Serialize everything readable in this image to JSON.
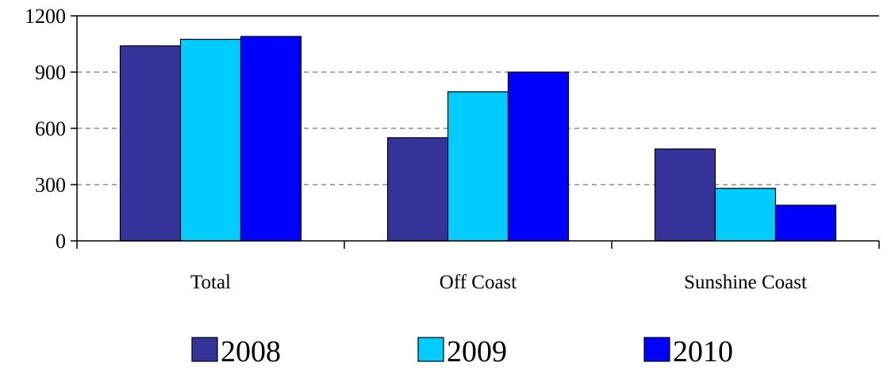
{
  "chart_data": {
    "type": "bar",
    "categories": [
      "Total",
      "Off Coast",
      "Sunshine Coast"
    ],
    "series": [
      {
        "name": "2008",
        "color": "#333399",
        "values": [
          1040,
          550,
          490
        ]
      },
      {
        "name": "2009",
        "color": "#00CCFF",
        "values": [
          1075,
          795,
          280
        ]
      },
      {
        "name": "2010",
        "color": "#0000FF",
        "values": [
          1090,
          900,
          190
        ]
      }
    ],
    "title": "",
    "xlabel": "",
    "ylabel": "",
    "ylim": [
      0,
      1200
    ],
    "yticks": [
      0,
      300,
      600,
      900,
      1200
    ],
    "ytick_labels": [
      "0",
      "300",
      "600",
      "900",
      "1200"
    ],
    "grid": "horizontal dashed",
    "legend_position": "bottom"
  }
}
